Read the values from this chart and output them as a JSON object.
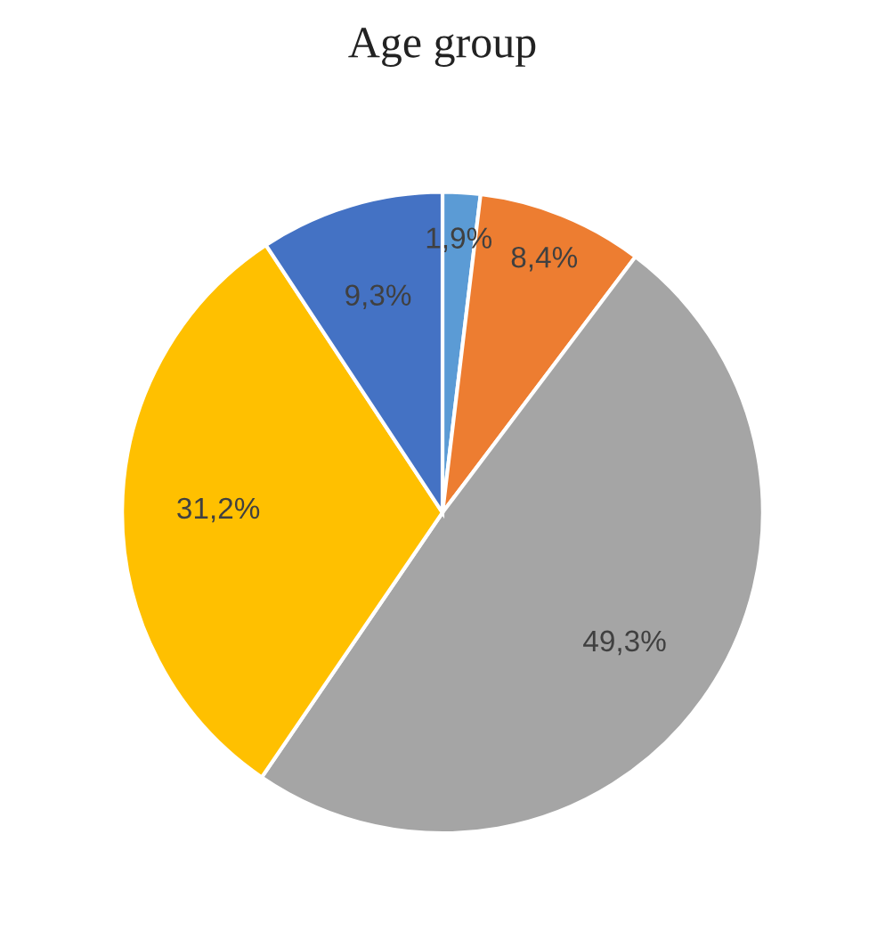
{
  "chart_data": {
    "type": "pie",
    "title": "Age group",
    "categories": [
      null,
      null,
      null,
      null,
      null
    ],
    "values": [
      1.9,
      8.4,
      49.3,
      31.2,
      9.3
    ],
    "value_labels": [
      "1,9%",
      "8,4%",
      "49,3%",
      "31,2%",
      "9,3%"
    ],
    "colors": [
      "#5b9bd5",
      "#ed7d31",
      "#a5a5a5",
      "#ffc000",
      "#4472c4"
    ]
  }
}
